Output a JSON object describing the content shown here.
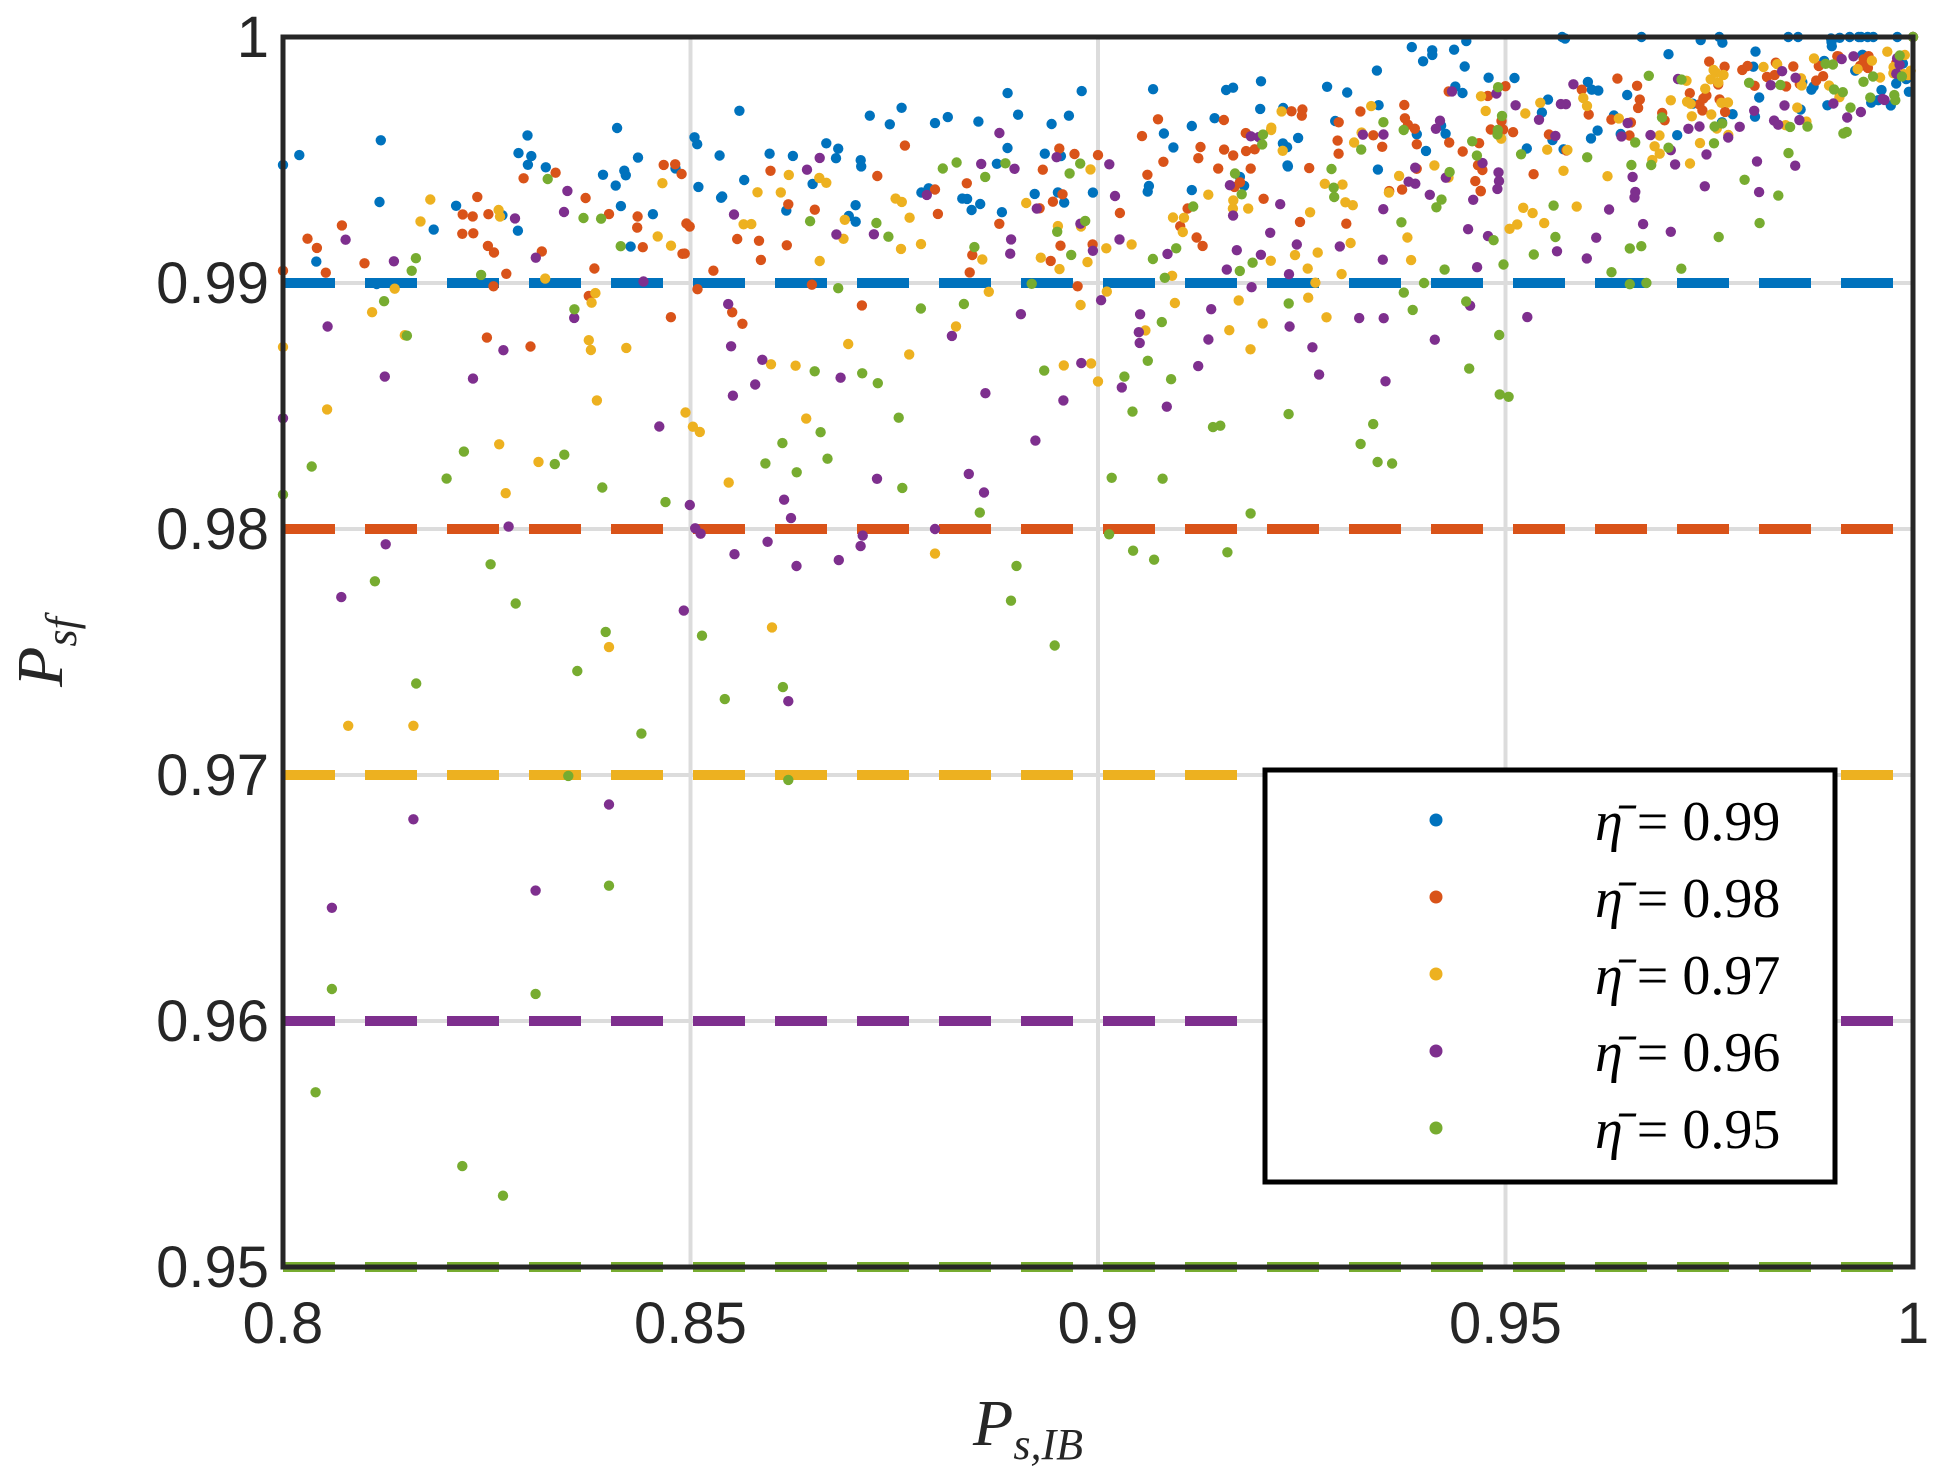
{
  "chart_data": {
    "type": "scatter",
    "title": "",
    "xlabel": {
      "main": "P",
      "sub": "s,IB"
    },
    "ylabel": {
      "main": "P",
      "sub": "sf"
    },
    "xlim": [
      0.8,
      1.0
    ],
    "ylim": [
      0.95,
      1.0
    ],
    "xticks": [
      "0.8",
      "0.85",
      "0.9",
      "0.95",
      "1"
    ],
    "yticks": [
      "0.95",
      "0.96",
      "0.97",
      "0.98",
      "0.99",
      "1"
    ],
    "grid": true,
    "legend_position": "bottom-right",
    "points_per_series": 170,
    "series": [
      {
        "name": "η̄ = 0.99",
        "eta_label": "η̄",
        "value_label": "= 0.99",
        "eta": 0.99,
        "color": "#0072BD",
        "threshold": 0.99,
        "sample_points": [
          [
            0.8,
            0.9948
          ],
          [
            0.802,
            0.9952
          ],
          [
            0.812,
            0.9958
          ],
          [
            0.83,
            0.996
          ],
          [
            0.841,
            0.9963
          ],
          [
            0.856,
            0.997
          ],
          [
            0.872,
            0.9968
          ],
          [
            0.88,
            0.9965
          ],
          [
            0.898,
            0.9978
          ],
          [
            0.92,
            0.9982
          ],
          [
            0.945,
            0.9988
          ],
          [
            0.97,
            0.9993
          ],
          [
            0.99,
            0.9998
          ],
          [
            1.0,
            1.0
          ]
        ]
      },
      {
        "name": "η̄ = 0.98",
        "eta_label": "η̄",
        "value_label": "= 0.98",
        "eta": 0.98,
        "color": "#D95319",
        "threshold": 0.98,
        "sample_points": [
          [
            0.8,
            0.9905
          ],
          [
            0.803,
            0.9918
          ],
          [
            0.81,
            0.9908
          ],
          [
            0.822,
            0.992
          ],
          [
            0.84,
            0.9928
          ],
          [
            0.862,
            0.9932
          ],
          [
            0.88,
            0.9938
          ],
          [
            0.9,
            0.9952
          ],
          [
            0.925,
            0.9968
          ],
          [
            0.95,
            0.998
          ],
          [
            0.975,
            0.999
          ],
          [
            1.0,
            1.0
          ]
        ]
      },
      {
        "name": "η̄ = 0.97",
        "eta_label": "η̄",
        "value_label": "= 0.97",
        "eta": 0.97,
        "color": "#EDB120",
        "threshold": 0.97,
        "sample_points": [
          [
            0.8,
            0.9874
          ],
          [
            0.808,
            0.972
          ],
          [
            0.816,
            0.972
          ],
          [
            0.84,
            0.9752
          ],
          [
            0.86,
            0.976
          ],
          [
            0.88,
            0.979
          ],
          [
            0.9,
            0.986
          ],
          [
            0.93,
            0.994
          ],
          [
            0.96,
            0.9972
          ],
          [
            1.0,
            1.0
          ]
        ]
      },
      {
        "name": "η̄ = 0.96",
        "eta_label": "η̄",
        "value_label": "= 0.96",
        "eta": 0.96,
        "color": "#7E2F8E",
        "threshold": 0.96,
        "sample_points": [
          [
            0.8,
            0.9845
          ],
          [
            0.806,
            0.9646
          ],
          [
            0.816,
            0.9682
          ],
          [
            0.831,
            0.9653
          ],
          [
            0.84,
            0.9688
          ],
          [
            0.862,
            0.973
          ],
          [
            0.88,
            0.98
          ],
          [
            0.905,
            0.988
          ],
          [
            0.935,
            0.993
          ],
          [
            0.965,
            0.9965
          ],
          [
            1.0,
            1.0
          ]
        ]
      },
      {
        "name": "η̄ = 0.95",
        "eta_label": "η̄",
        "value_label": "= 0.95",
        "eta": 0.95,
        "color": "#77AC30",
        "threshold": 0.95,
        "sample_points": [
          [
            0.8,
            0.9814
          ],
          [
            0.804,
            0.9571
          ],
          [
            0.806,
            0.9613
          ],
          [
            0.822,
            0.9541
          ],
          [
            0.827,
            0.9529
          ],
          [
            0.831,
            0.9611
          ],
          [
            0.84,
            0.9655
          ],
          [
            0.862,
            0.9698
          ],
          [
            0.89,
            0.9785
          ],
          [
            0.915,
            0.9842
          ],
          [
            0.94,
            0.99
          ],
          [
            0.97,
            0.9955
          ],
          [
            1.0,
            1.0
          ]
        ]
      }
    ]
  }
}
